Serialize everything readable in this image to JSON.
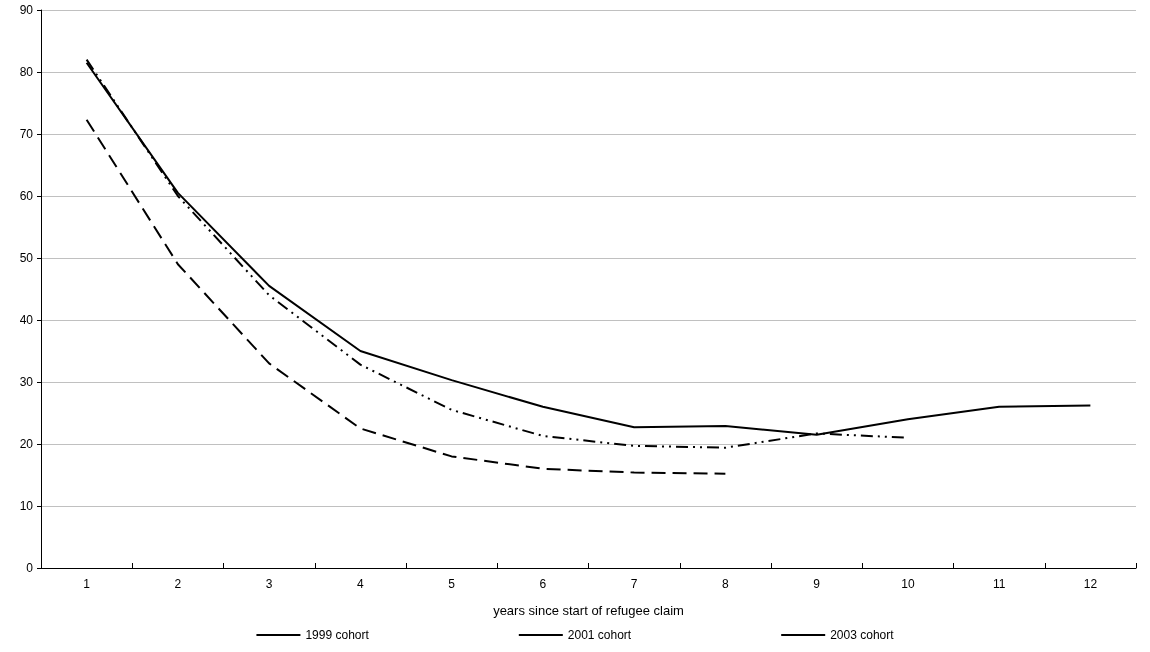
{
  "chart_data": {
    "type": "line",
    "xlabel": "years since start of refugee claim",
    "categories": [
      "1",
      "2",
      "3",
      "4",
      "5",
      "6",
      "7",
      "8",
      "9",
      "10",
      "11",
      "12"
    ],
    "series": [
      {
        "name": "1999 cohort",
        "color": "#000000",
        "line_style": "solid",
        "values": [
          81.5,
          60.5,
          45.5,
          35,
          30.3,
          26,
          22.7,
          22.9,
          21.5,
          24,
          26,
          26.2
        ]
      },
      {
        "name": "2001 cohort",
        "color": "#000000",
        "line_style": "dashdotdot",
        "values": [
          82,
          60,
          44,
          32.8,
          25.5,
          21.3,
          19.7,
          19.4,
          21.7,
          21,
          null,
          null
        ]
      },
      {
        "name": "2003 cohort",
        "color": "#000000",
        "line_style": "dashed",
        "values": [
          72.3,
          49,
          33,
          22.5,
          18,
          16,
          15.4,
          15.2,
          null,
          null,
          null,
          null
        ]
      }
    ],
    "ylim": [
      0,
      90
    ],
    "yticks": [
      0,
      10,
      20,
      30,
      40,
      50,
      60,
      70,
      80,
      90
    ],
    "grid": "y",
    "legend": "bottom",
    "marker": "none"
  }
}
